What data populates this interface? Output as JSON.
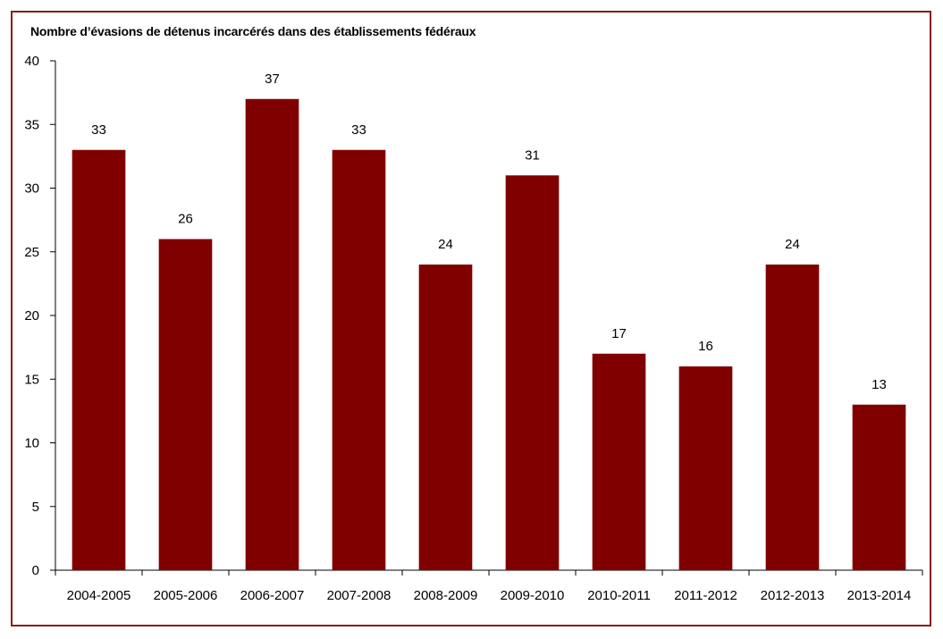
{
  "chart_data": {
    "type": "bar",
    "title": "Nombre d’évasions de détenus incarcérés dans des établissements fédéraux",
    "categories": [
      "2004-2005",
      "2005-2006",
      "2006-2007",
      "2007-2008",
      "2008-2009",
      "2009-2010",
      "2010-2011",
      "2011-2012",
      "2012-2013",
      "2013-2014"
    ],
    "values": [
      33,
      26,
      37,
      33,
      24,
      31,
      17,
      16,
      24,
      13
    ],
    "ylim": [
      0,
      40
    ],
    "yticks": [
      0,
      5,
      10,
      15,
      20,
      25,
      30,
      35,
      40
    ],
    "xlabel": "",
    "ylabel": "",
    "grid": false,
    "bar_color": "#800000",
    "axis_color": "#000000",
    "frame_color": "#8b1c1c"
  }
}
